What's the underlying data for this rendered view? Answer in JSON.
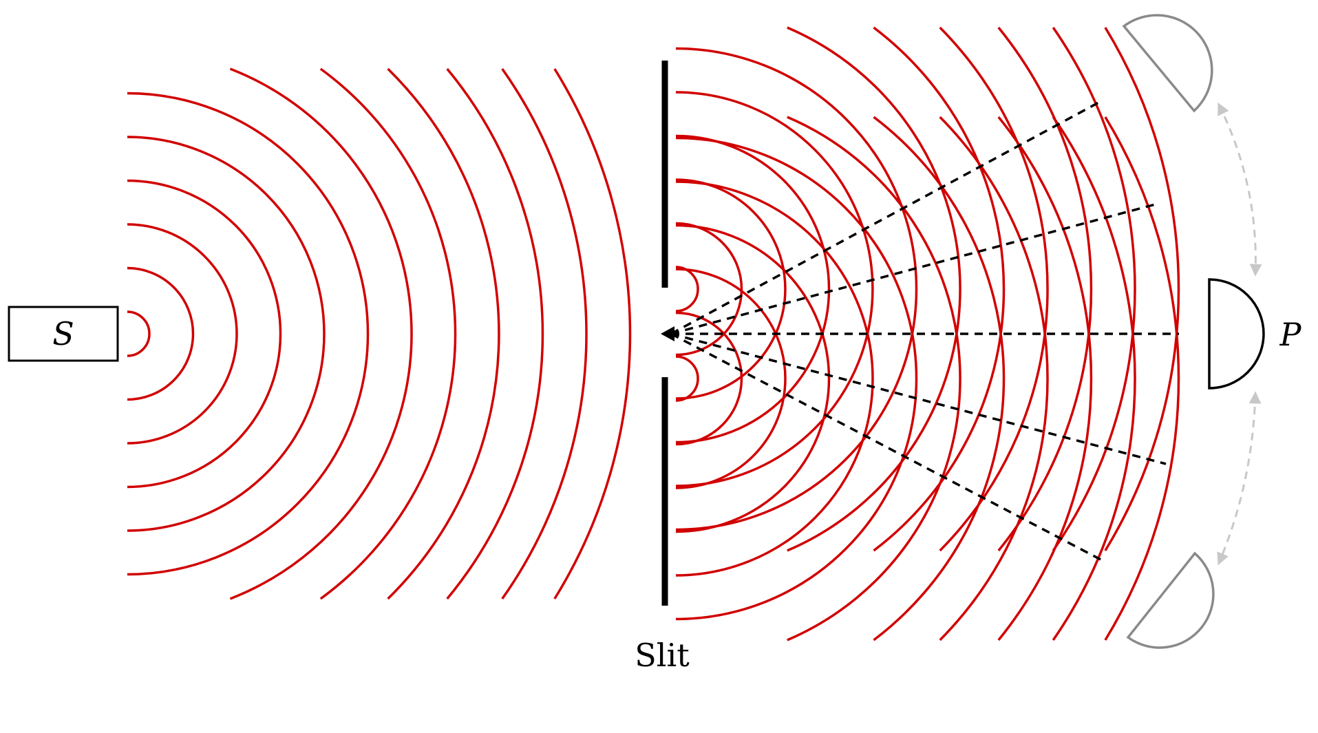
{
  "labels": {
    "source": "S",
    "slit": "Slit",
    "point": "P"
  },
  "colors": {
    "wave": "#d10000",
    "ink": "#000000",
    "ghost": "#8a8a8a",
    "arrow": "#c8c8c8",
    "background": "#ffffff"
  }
}
